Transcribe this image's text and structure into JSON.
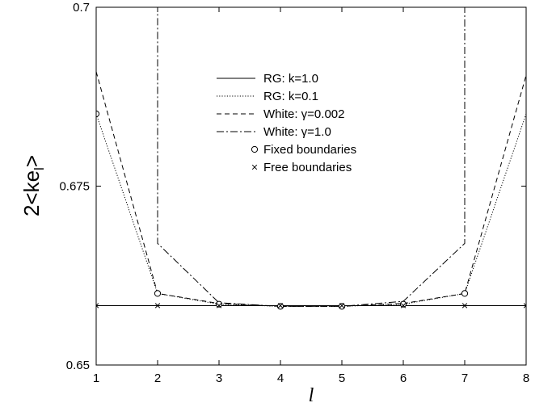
{
  "chart_data": {
    "type": "line",
    "xlabel": "l",
    "ylabel": "2<ke",
    "ylabel_subscript": "l",
    "ylabel_suffix": ">",
    "xlim": [
      1,
      8
    ],
    "ylim": [
      0.65,
      0.7
    ],
    "x_ticks": [
      1,
      2,
      3,
      4,
      5,
      6,
      7,
      8
    ],
    "x_tick_labels": [
      "1",
      "2",
      "3",
      "4",
      "5",
      "6",
      "7",
      "8"
    ],
    "y_ticks": [
      0.65,
      0.675,
      0.7
    ],
    "y_tick_labels": [
      "0.65",
      "0.675",
      "0.7"
    ],
    "legend_position": "upper-center",
    "series": [
      {
        "name": "RG: k=1.0",
        "dash": "solid",
        "marker": "none",
        "x": [
          1,
          2,
          3,
          4,
          5,
          6,
          7,
          8
        ],
        "y": [
          0.6583,
          0.6583,
          0.6583,
          0.6583,
          0.6583,
          0.6583,
          0.6583,
          0.6583
        ]
      },
      {
        "name": "RG: k=0.1",
        "dash": "dotted",
        "marker": "none",
        "x": [
          1,
          2,
          3,
          4,
          5,
          6,
          7,
          8
        ],
        "y": [
          0.6851,
          0.66,
          0.6585,
          0.6582,
          0.6582,
          0.6585,
          0.66,
          0.6851
        ]
      },
      {
        "name": "White: γ=0.002",
        "dash": "dashed",
        "marker": "none",
        "x": [
          1,
          2,
          3,
          4,
          5,
          6,
          7,
          8
        ],
        "y": [
          0.691,
          0.66,
          0.6586,
          0.6582,
          0.6582,
          0.6586,
          0.66,
          0.6905
        ]
      },
      {
        "name": "White: γ=1.0",
        "dash": "dashdot",
        "marker": "none",
        "x": [
          2,
          2,
          3,
          4,
          5,
          6,
          7,
          7
        ],
        "y": [
          0.71,
          0.667,
          0.6587,
          0.6582,
          0.6582,
          0.6589,
          0.667,
          0.71
        ]
      },
      {
        "name": "Fixed boundaries",
        "dash": "none",
        "marker": "circle",
        "x": [
          1,
          2,
          3,
          4,
          5,
          6,
          7
        ],
        "y": [
          0.6851,
          0.66,
          0.6585,
          0.6582,
          0.6582,
          0.6585,
          0.66
        ]
      },
      {
        "name": "Free boundaries",
        "dash": "none",
        "marker": "cross",
        "x": [
          1,
          2,
          3,
          4,
          5,
          6,
          7,
          8
        ],
        "y": [
          0.6583,
          0.6583,
          0.6583,
          0.6583,
          0.6583,
          0.6583,
          0.6583,
          0.6583
        ]
      }
    ]
  }
}
